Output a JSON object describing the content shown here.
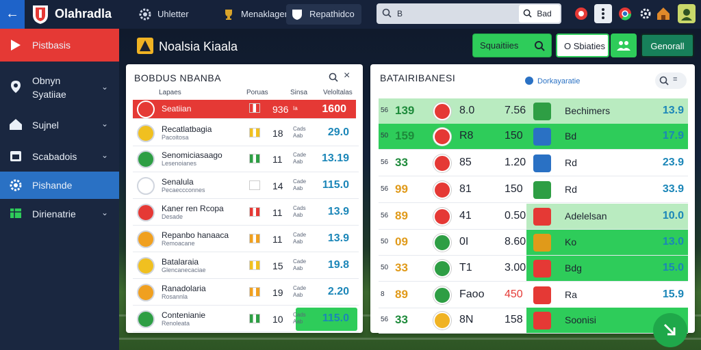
{
  "topbar": {
    "app_title": "Olahradla",
    "nav": [
      "Uhletter",
      "Menaklager",
      "Repathidco"
    ],
    "search_text": "B",
    "search_button": "Bad"
  },
  "sidebar": {
    "items": [
      {
        "label": "Pistbasis",
        "icon": "play-icon"
      },
      {
        "label": "Obnyn\nSyatiiae",
        "icon": "pin-icon"
      },
      {
        "label": "Sujnel",
        "icon": "home-icon"
      },
      {
        "label": "Scabadois",
        "icon": "calendar-icon"
      },
      {
        "label": "Pishande",
        "icon": "gear-icon"
      },
      {
        "label": "Dirienatrie",
        "icon": "grid-icon"
      }
    ]
  },
  "header": {
    "page_title": "Noalsia Kiaala",
    "buttons": [
      "Squaitiies",
      "O Sbiaties",
      "Genorall"
    ]
  },
  "left_panel": {
    "title": "BOBDUS NBANBA",
    "columns": [
      "Lapaes",
      "Poruas",
      "Sinsa",
      "Veloltalas"
    ],
    "rows": [
      {
        "name": "Seatiian",
        "sub": "",
        "n1": "936",
        "ab": "Ia",
        "val": "1600",
        "flag": "#e53935"
      },
      {
        "name": "Recatlatbagia",
        "sub": "Pacoitosa",
        "n1": "18",
        "ab": "Cads\nAab",
        "val": "29.0",
        "flag": "#f0c020"
      },
      {
        "name": "Senomiciasaago",
        "sub": "Lesenoianes",
        "n1": "11",
        "ab": "Cade\nAab",
        "val": "13.19",
        "flag": "#2e9e44"
      },
      {
        "name": "Senalula",
        "sub": "Pecaeccconnes",
        "n1": "14",
        "ab": "Cade\nAab",
        "val": "115.0",
        "flag": "#ffffff"
      },
      {
        "name": "Kaner ren Rcopa",
        "sub": "Desade",
        "n1": "11",
        "ab": "Cads\nAab",
        "val": "13.9",
        "flag": "#e53935"
      },
      {
        "name": "Repanbo hanaaca",
        "sub": "Remoacane",
        "n1": "11",
        "ab": "Cade\nAab",
        "val": "13.9",
        "flag": "#f0a020"
      },
      {
        "name": "Batalaraia",
        "sub": "Glencanecaciae",
        "n1": "15",
        "ab": "Cade\nAab",
        "val": "19.8",
        "flag": "#f0c020"
      },
      {
        "name": "Ranadolaria",
        "sub": "Rosannla",
        "n1": "19",
        "ab": "Cade\nAab",
        "val": "2.20",
        "flag": "#f0a020"
      },
      {
        "name": "Contenianie",
        "sub": "Renoleata",
        "n1": "10",
        "ab": "Cads\nAab",
        "val": "115.0",
        "flag": "#2e9e44"
      }
    ]
  },
  "right_panel": {
    "title": "BATAIRIBANESI",
    "subtitle": "Dorkayaratie",
    "rows": [
      {
        "a": "56",
        "b": "139",
        "c": "8.0",
        "d": "7.56",
        "e": "Bechimers",
        "f": "13.9"
      },
      {
        "a": "50",
        "b": "159",
        "c": "R8",
        "d": "150",
        "e": "Bd",
        "f": "17.9"
      },
      {
        "a": "56",
        "b": "33",
        "c": "85",
        "d": "1.20",
        "e": "Rd",
        "f": "23.9"
      },
      {
        "a": "56",
        "b": "99",
        "c": "81",
        "d": "150",
        "e": "Rd",
        "f": "33.9"
      },
      {
        "a": "56",
        "b": "89",
        "c": "41",
        "d": "0.50",
        "e": "Adelelsan",
        "f": "10.0"
      },
      {
        "a": "50",
        "b": "09",
        "c": "0I",
        "d": "8.60",
        "e": "Ko",
        "f": "13.0"
      },
      {
        "a": "50",
        "b": "33",
        "c": "T1",
        "d": "3.00",
        "e": "Bdg",
        "f": "15.0"
      },
      {
        "a": "8",
        "b": "89",
        "c": "Faoo",
        "d": "450",
        "e": "Ra",
        "f": "15.9"
      },
      {
        "a": "56",
        "b": "33",
        "c": "8N",
        "d": "158",
        "e": "Soonisi",
        "f": ""
      }
    ]
  },
  "colors": {
    "accent_red": "#e53935",
    "accent_green": "#2ecc5a",
    "accent_blue": "#2a71c4",
    "value_blue": "#1b86b8"
  }
}
